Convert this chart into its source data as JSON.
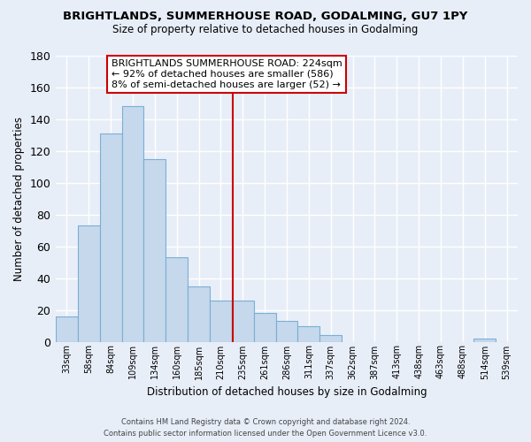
{
  "title": "BRIGHTLANDS, SUMMERHOUSE ROAD, GODALMING, GU7 1PY",
  "subtitle": "Size of property relative to detached houses in Godalming",
  "xlabel": "Distribution of detached houses by size in Godalming",
  "ylabel": "Number of detached properties",
  "bar_color": "#c5d8ec",
  "bar_edge_color": "#7bafd4",
  "background_color": "#e8eef8",
  "grid_color": "#ffffff",
  "categories": [
    "33sqm",
    "58sqm",
    "84sqm",
    "109sqm",
    "134sqm",
    "160sqm",
    "185sqm",
    "210sqm",
    "235sqm",
    "261sqm",
    "286sqm",
    "311sqm",
    "337sqm",
    "362sqm",
    "387sqm",
    "413sqm",
    "438sqm",
    "463sqm",
    "488sqm",
    "514sqm",
    "539sqm"
  ],
  "values": [
    16,
    73,
    131,
    148,
    115,
    53,
    35,
    26,
    26,
    18,
    13,
    10,
    4,
    0,
    0,
    0,
    0,
    0,
    0,
    2,
    0
  ],
  "vline_color": "#cc0000",
  "ylim": [
    0,
    180
  ],
  "yticks": [
    0,
    20,
    40,
    60,
    80,
    100,
    120,
    140,
    160,
    180
  ],
  "annotation_title": "BRIGHTLANDS SUMMERHOUSE ROAD: 224sqm",
  "annotation_line1": "← 92% of detached houses are smaller (586)",
  "annotation_line2": "8% of semi-detached houses are larger (52) →",
  "annotation_box_color": "#ffffff",
  "annotation_border_color": "#cc0000",
  "footer_line1": "Contains HM Land Registry data © Crown copyright and database right 2024.",
  "footer_line2": "Contains public sector information licensed under the Open Government Licence v3.0."
}
